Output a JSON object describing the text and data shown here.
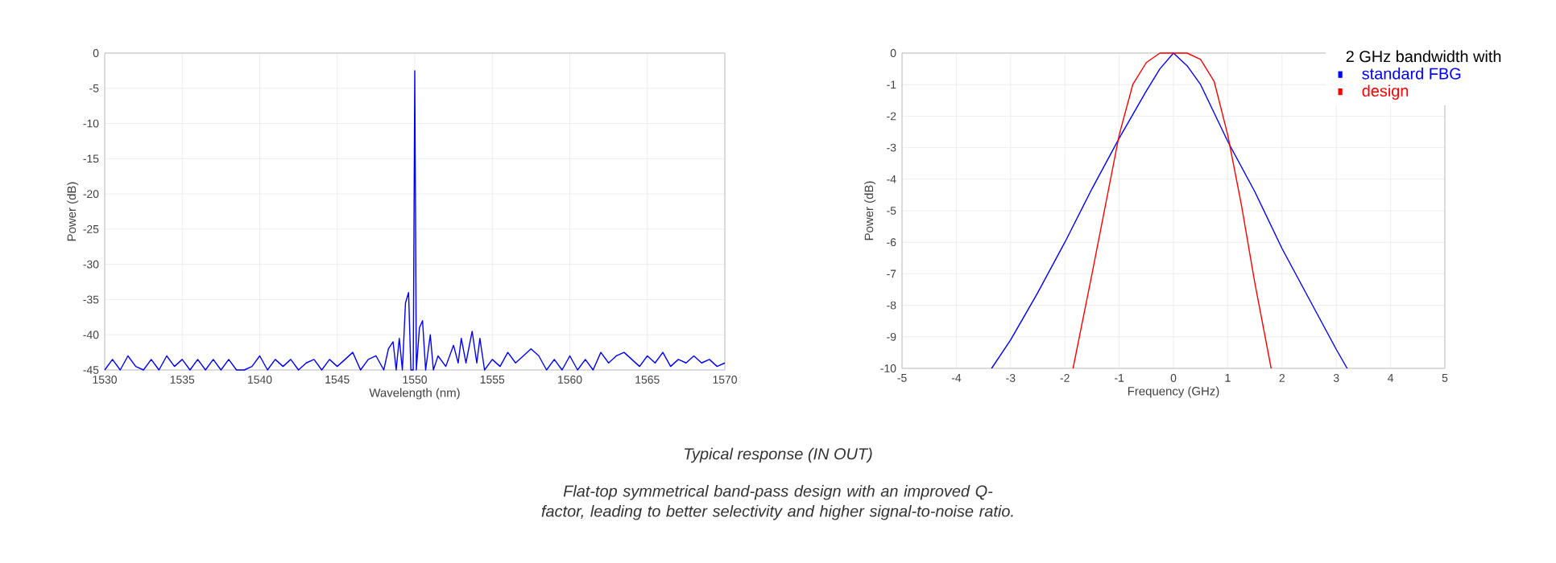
{
  "chart_data": [
    {
      "type": "line",
      "xlabel": "Wavelength (nm)",
      "ylabel": "Power (dB)",
      "grid": true,
      "x": [
        1530,
        1530.5,
        1531,
        1531.5,
        1532,
        1532.5,
        1533,
        1533.5,
        1534,
        1534.5,
        1535,
        1535.5,
        1536,
        1536.5,
        1537,
        1537.5,
        1538,
        1538.5,
        1539,
        1539.5,
        1540,
        1540.5,
        1541,
        1541.5,
        1542,
        1542.5,
        1543,
        1543.5,
        1544,
        1544.5,
        1545,
        1545.5,
        1546,
        1546.5,
        1547,
        1547.5,
        1548,
        1548.3,
        1548.6,
        1548.8,
        1549,
        1549.2,
        1549.4,
        1549.6,
        1549.75,
        1549.9,
        1550,
        1550.1,
        1550.3,
        1550.5,
        1550.7,
        1551,
        1551.2,
        1551.5,
        1552,
        1552.5,
        1552.8,
        1553,
        1553.3,
        1553.7,
        1554,
        1554.2,
        1554.5,
        1555,
        1555.5,
        1556,
        1556.5,
        1557,
        1557.5,
        1558,
        1558.5,
        1559,
        1559.5,
        1560,
        1560.5,
        1561,
        1561.5,
        1562,
        1562.5,
        1563,
        1563.5,
        1564,
        1564.5,
        1565,
        1565.5,
        1566,
        1566.5,
        1567,
        1567.5,
        1568,
        1568.5,
        1569,
        1569.5,
        1570
      ],
      "series": [
        {
          "color": "#0000ff",
          "values": [
            -45,
            -43.5,
            -45,
            -43,
            -44.5,
            -45,
            -43.5,
            -45,
            -43,
            -44.5,
            -43.5,
            -45,
            -43.5,
            -45,
            -43.5,
            -45,
            -43.5,
            -45,
            -45,
            -44.5,
            -43,
            -45,
            -43.5,
            -44.5,
            -43.5,
            -45,
            -44,
            -43.5,
            -45,
            -43.5,
            -44.5,
            -43.5,
            -42.5,
            -45,
            -43.5,
            -43,
            -45,
            -42,
            -41,
            -45,
            -40.5,
            -45,
            -35.5,
            -34,
            -45,
            -45,
            -2.5,
            -45,
            -39,
            -38,
            -45,
            -40,
            -45,
            -43,
            -44.5,
            -41.5,
            -44,
            -40.5,
            -44,
            -39.5,
            -44,
            -40.5,
            -45,
            -43.5,
            -44.5,
            -42.5,
            -44,
            -43,
            -42,
            -43,
            -45,
            -43.5,
            -45,
            -43,
            -45,
            -43.5,
            -45,
            -42.5,
            -44,
            -43,
            -42.5,
            -43.5,
            -44.5,
            -43,
            -44,
            -42.5,
            -44.5,
            -43.5,
            -44,
            -43,
            -44,
            -43.5,
            -44.5,
            -44
          ]
        }
      ],
      "xlim": [
        1530,
        1570
      ],
      "ylim": [
        -45,
        0
      ],
      "xticks": [
        1530,
        1535,
        1540,
        1545,
        1550,
        1555,
        1560,
        1565,
        1570
      ],
      "yticks": [
        -45,
        -40,
        -35,
        -30,
        -25,
        -20,
        -15,
        -10,
        -5,
        0
      ]
    },
    {
      "type": "line",
      "xlabel": "Frequency (GHz)",
      "ylabel": "Power (dB)",
      "grid": true,
      "legend": "top right",
      "legend_title": "2 GHz bandwidth with",
      "series": [
        {
          "name": "standard FBG",
          "color": "#0000ff",
          "x": [
            -3.35,
            -3,
            -2.5,
            -2,
            -1.5,
            -1,
            -0.5,
            -0.25,
            0,
            0.25,
            0.5,
            1,
            1.5,
            2,
            2.5,
            3,
            3.2
          ],
          "values": [
            -10,
            -9.1,
            -7.6,
            -6,
            -4.3,
            -2.7,
            -1.2,
            -0.5,
            0,
            -0.4,
            -1,
            -2.8,
            -4.4,
            -6.2,
            -7.8,
            -9.4,
            -10
          ]
        },
        {
          "name": "design",
          "color": "#ff0000",
          "x": [
            -1.85,
            -1.5,
            -1.25,
            -1,
            -0.75,
            -0.5,
            -0.25,
            0,
            0.25,
            0.5,
            0.75,
            1,
            1.25,
            1.5,
            1.8
          ],
          "values": [
            -10,
            -7,
            -4.8,
            -2.6,
            -1,
            -0.3,
            0,
            0,
            0,
            -0.2,
            -0.9,
            -2.6,
            -4.8,
            -7.3,
            -10
          ]
        }
      ],
      "xlim": [
        -5,
        5
      ],
      "ylim": [
        -10,
        0
      ],
      "xticks": [
        -5,
        -4,
        -3,
        -2,
        -1,
        0,
        1,
        2,
        3,
        4,
        5
      ],
      "yticks": [
        -10,
        -9,
        -8,
        -7,
        -6,
        -5,
        -4,
        -3,
        -2,
        -1,
        0
      ]
    },
    {
      "type": "other",
      "title": "Typical response (IN OUT)",
      "annotations": [
        "Flat-top symmetrical band-pass design with an improved Q-factor, leading to better selectivity and higher signal-to-noise ratio."
      ]
    }
  ]
}
